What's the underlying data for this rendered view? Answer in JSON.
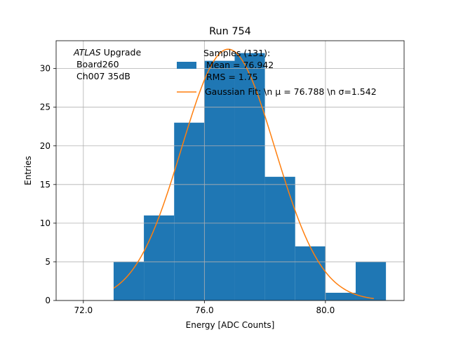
{
  "chart_data": {
    "type": "bar",
    "title": "Run 754",
    "xlabel": "Energy [ADC Counts]",
    "ylabel": "Entries",
    "xlim": [
      71.1,
      82.6
    ],
    "ylim": [
      0,
      33.6
    ],
    "grid": true,
    "xticks": [
      72,
      76,
      80
    ],
    "xtick_labels": [
      "72.0",
      "76.0",
      "80.0"
    ],
    "yticks": [
      0,
      5,
      10,
      15,
      20,
      25,
      30
    ],
    "yticks_labels": [
      "0",
      "5",
      "10",
      "15",
      "20",
      "25",
      "30"
    ],
    "bin_width": 1,
    "bin_starts": [
      73,
      74,
      75,
      76,
      77,
      78,
      79,
      80,
      81
    ],
    "counts": [
      5,
      11,
      23,
      31,
      32,
      16,
      7,
      1,
      5
    ],
    "bar_color": "#1f77b4",
    "annotation": {
      "italic": "ATLAS",
      "rest": " Upgrade",
      "line2": " Board260",
      "line3": " Ch007 35dB"
    },
    "legend_position": "top-right",
    "legend": {
      "samples_line1": "Samples (131):",
      "samples_line2": " Mean = 76.942",
      "samples_line3": " RMS = 1.75",
      "fit_label": "Gaussian Fit: \\n μ = 76.788 \\n σ=1.542"
    },
    "fit": {
      "name": "Gaussian Fit",
      "type": "gaussian",
      "mu": 76.788,
      "sigma": 1.542,
      "amplitude": 32.5,
      "x_range": [
        73,
        81.6
      ],
      "color": "#ff7f0e"
    }
  }
}
